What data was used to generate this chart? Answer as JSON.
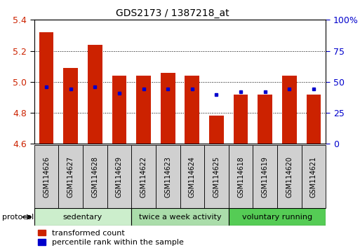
{
  "title": "GDS2173 / 1387218_at",
  "categories": [
    "GSM114626",
    "GSM114627",
    "GSM114628",
    "GSM114629",
    "GSM114622",
    "GSM114623",
    "GSM114624",
    "GSM114625",
    "GSM114618",
    "GSM114619",
    "GSM114620",
    "GSM114621"
  ],
  "red_values": [
    5.32,
    5.09,
    5.24,
    5.04,
    5.04,
    5.06,
    5.04,
    4.78,
    4.92,
    4.92,
    5.04,
    4.92
  ],
  "blue_pct": [
    46,
    44,
    46,
    41,
    44,
    44,
    44,
    40,
    42,
    42,
    44,
    44
  ],
  "ylim": [
    4.6,
    5.4
  ],
  "y2lim": [
    0,
    100
  ],
  "yticks": [
    4.6,
    4.8,
    5.0,
    5.2,
    5.4
  ],
  "y2ticks": [
    0,
    25,
    50,
    75,
    100
  ],
  "y2ticklabels": [
    "0",
    "25",
    "50",
    "75",
    "100%"
  ],
  "bar_width": 0.6,
  "baseline": 4.6,
  "red_color": "#cc2200",
  "blue_color": "#0000cc",
  "group_labels": [
    "sedentary",
    "twice a week activity",
    "voluntary running"
  ],
  "group_bg": [
    "#cceecc",
    "#aaddaa",
    "#55cc55"
  ],
  "group_ranges": [
    [
      0,
      4
    ],
    [
      4,
      8
    ],
    [
      8,
      12
    ]
  ],
  "legend_red": "transformed count",
  "legend_blue": "percentile rank within the sample",
  "protocol_label": "protocol"
}
